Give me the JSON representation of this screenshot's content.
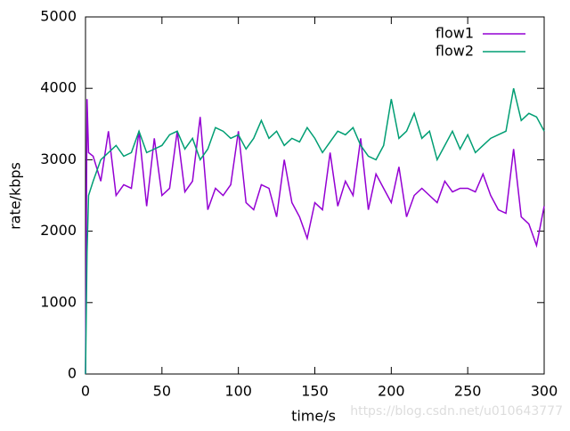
{
  "chart_data": {
    "type": "line",
    "xlabel": "time/s",
    "ylabel": "rate/kbps",
    "watermark": "https://blog.csdn.net/u010643777",
    "x": [
      0,
      1,
      2,
      5,
      10,
      15,
      20,
      25,
      30,
      35,
      40,
      45,
      50,
      55,
      60,
      65,
      70,
      75,
      80,
      85,
      90,
      95,
      100,
      105,
      110,
      115,
      120,
      125,
      130,
      135,
      140,
      145,
      150,
      155,
      160,
      165,
      170,
      175,
      180,
      185,
      190,
      195,
      200,
      205,
      210,
      215,
      220,
      225,
      230,
      235,
      240,
      245,
      250,
      255,
      260,
      265,
      270,
      275,
      280,
      285,
      290,
      295,
      300
    ],
    "series": [
      {
        "name": "flow1",
        "color": "#9400d3",
        "values": [
          0,
          3850,
          3100,
          3050,
          2700,
          3400,
          2500,
          2650,
          2600,
          3400,
          2350,
          3300,
          2500,
          2600,
          3400,
          2550,
          2700,
          3600,
          2300,
          2600,
          2500,
          2650,
          3400,
          2400,
          2300,
          2650,
          2600,
          2200,
          3000,
          2400,
          2200,
          1900,
          2400,
          2300,
          3100,
          2350,
          2700,
          2500,
          3300,
          2300,
          2800,
          2600,
          2400,
          2900,
          2200,
          2500,
          2600,
          2500,
          2400,
          2700,
          2550,
          2600,
          2600,
          2550,
          2800,
          2500,
          2300,
          2250,
          3150,
          2200,
          2100,
          1800,
          2350
        ]
      },
      {
        "name": "flow2",
        "color": "#009e73",
        "values": [
          0,
          1700,
          2500,
          2700,
          3000,
          3100,
          3200,
          3050,
          3100,
          3400,
          3100,
          3150,
          3200,
          3350,
          3400,
          3150,
          3300,
          3000,
          3150,
          3450,
          3400,
          3300,
          3350,
          3150,
          3300,
          3550,
          3300,
          3400,
          3200,
          3300,
          3250,
          3450,
          3300,
          3100,
          3250,
          3400,
          3350,
          3450,
          3200,
          3050,
          3000,
          3200,
          3850,
          3300,
          3400,
          3650,
          3300,
          3400,
          3000,
          3200,
          3400,
          3150,
          3350,
          3100,
          3200,
          3300,
          3350,
          3400,
          4000,
          3550,
          3650,
          3600,
          3400
        ]
      }
    ],
    "xlim": [
      0,
      300
    ],
    "xticks": [
      0,
      50,
      100,
      150,
      200,
      250,
      300
    ],
    "ylim": [
      0,
      5000
    ],
    "yticks": [
      0,
      1000,
      2000,
      3000,
      4000,
      5000
    ],
    "legend": "top-right"
  }
}
